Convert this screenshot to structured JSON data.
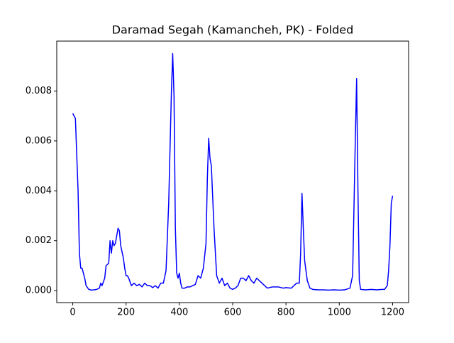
{
  "chart_data": {
    "type": "line",
    "title": "Daramad Segah (Kamancheh, PK) - Folded",
    "x": [
      0,
      10,
      20,
      25,
      30,
      35,
      40,
      45,
      50,
      60,
      70,
      80,
      90,
      100,
      105,
      110,
      120,
      125,
      135,
      140,
      145,
      150,
      155,
      160,
      170,
      175,
      180,
      190,
      195,
      200,
      205,
      210,
      220,
      230,
      240,
      250,
      260,
      270,
      280,
      290,
      300,
      310,
      320,
      330,
      340,
      350,
      360,
      370,
      375,
      380,
      385,
      390,
      395,
      400,
      405,
      410,
      420,
      430,
      440,
      450,
      460,
      470,
      480,
      490,
      500,
      505,
      510,
      515,
      520,
      530,
      540,
      550,
      555,
      560,
      570,
      580,
      590,
      600,
      610,
      620,
      630,
      640,
      650,
      660,
      670,
      680,
      690,
      700,
      710,
      720,
      730,
      750,
      770,
      790,
      800,
      820,
      840,
      850,
      855,
      860,
      865,
      870,
      880,
      890,
      900,
      920,
      940,
      960,
      980,
      1000,
      1020,
      1040,
      1050,
      1060,
      1065,
      1070,
      1075,
      1080,
      1100,
      1120,
      1140,
      1160,
      1170,
      1180,
      1185,
      1190,
      1195,
      1200
    ],
    "series": [
      {
        "color": "#0000ff",
        "values": [
          0.0071,
          0.0069,
          0.004,
          0.0015,
          0.0009,
          0.0009,
          0.0007,
          0.0005,
          0.0002,
          5e-05,
          2e-05,
          3e-05,
          5e-05,
          0.0001,
          0.0003,
          0.0002,
          0.0005,
          0.001,
          0.0011,
          0.002,
          0.0015,
          0.002,
          0.0018,
          0.0019,
          0.0025,
          0.0024,
          0.0018,
          0.0013,
          0.0009,
          0.0006,
          0.0006,
          0.0005,
          0.0002,
          0.0003,
          0.0002,
          0.00025,
          0.00015,
          0.0003,
          0.0002,
          0.0002,
          0.00012,
          0.0002,
          0.0001,
          0.0003,
          0.0003,
          0.0008,
          0.0035,
          0.0079,
          0.0095,
          0.0078,
          0.0025,
          0.0007,
          0.0005,
          0.0007,
          0.0003,
          0.0001,
          0.0001,
          0.00015,
          0.00015,
          0.0002,
          0.00025,
          0.0006,
          0.0005,
          0.0009,
          0.0019,
          0.0045,
          0.0061,
          0.0053,
          0.005,
          0.0025,
          0.0006,
          0.0003,
          0.0004,
          0.0005,
          0.0002,
          0.0003,
          0.0001,
          5e-05,
          0.0001,
          0.0002,
          0.0005,
          0.0005,
          0.0004,
          0.0006,
          0.0004,
          0.0003,
          0.0005,
          0.0004,
          0.0003,
          0.0002,
          0.0001,
          0.00015,
          0.00015,
          0.0001,
          0.00012,
          0.0001,
          0.0003,
          0.0003,
          0.0015,
          0.0039,
          0.0025,
          0.0012,
          0.0004,
          0.0001,
          5e-05,
          3e-05,
          3e-05,
          2e-05,
          3e-05,
          2e-05,
          3e-05,
          0.0001,
          0.0006,
          0.006,
          0.0085,
          0.004,
          0.0004,
          5e-05,
          3e-05,
          5e-05,
          3e-05,
          5e-05,
          5e-05,
          0.0002,
          0.0008,
          0.0018,
          0.0035,
          0.0038
        ]
      }
    ],
    "xlim": [
      -60,
      1260
    ],
    "xticks": [
      0,
      200,
      400,
      600,
      800,
      1000,
      1200
    ],
    "ylim": [
      -0.00048,
      0.01
    ],
    "yticks": [
      {
        "value": 0,
        "label": "0.000"
      },
      {
        "value": 0.002,
        "label": "0.002"
      },
      {
        "value": 0.004,
        "label": "0.004"
      },
      {
        "value": 0.006,
        "label": "0.006"
      },
      {
        "value": 0.008,
        "label": "0.008"
      }
    ],
    "grid": false
  }
}
